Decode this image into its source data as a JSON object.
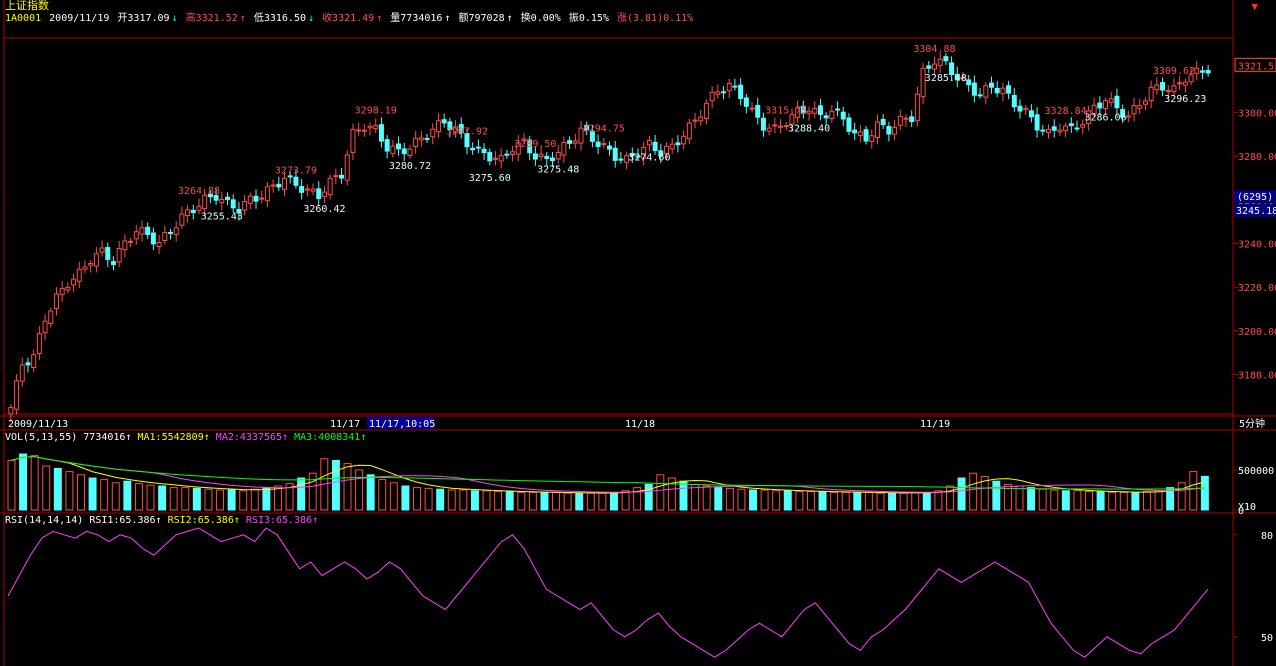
{
  "header": {
    "title": "上证指数",
    "code": "1A0001",
    "date": "2009/11/19",
    "open": "开3317.09",
    "high": "高3321.52",
    "low": "低3316.50",
    "close": "收3321.49",
    "volume": "量7734016",
    "amount": "额797028",
    "turnover": "换0.00%",
    "amplitude": "振0.15%",
    "change": "涨(3.81)0.11%"
  },
  "close_icon": "close-icon",
  "time_axis": {
    "labels": [
      "2009/11/13",
      "11/17",
      "11/17,10:05",
      "11/18",
      "11/19"
    ],
    "period": "5分钟"
  },
  "price_axis": {
    "ticks": [
      "3300.00",
      "3280.00",
      "3260.00",
      "3240.00",
      "3220.00",
      "3200.00",
      "3180.00"
    ],
    "current_price": "3321.5",
    "cursor_price": "3245.18",
    "cursor_count": "(6295)"
  },
  "annotations": [
    {
      "text": "3264.88",
      "type": "high"
    },
    {
      "text": "3255.43",
      "type": "low"
    },
    {
      "text": "3273.79",
      "type": "high"
    },
    {
      "text": "3260.42",
      "type": "low"
    },
    {
      "text": "3298.19",
      "type": "high"
    },
    {
      "text": "3280.72",
      "type": "low"
    },
    {
      "text": "3297.92",
      "type": "high"
    },
    {
      "text": "3275.60",
      "type": "low"
    },
    {
      "text": "3289.50",
      "type": "high"
    },
    {
      "text": "3275.48",
      "type": "low"
    },
    {
      "text": "3294.75",
      "type": "high"
    },
    {
      "text": "3274.60",
      "type": "low"
    },
    {
      "text": "3315.75",
      "type": "high"
    },
    {
      "text": "3288.40",
      "type": "low"
    },
    {
      "text": "3304.88",
      "type": "high"
    },
    {
      "text": "3285.48",
      "type": "low"
    },
    {
      "text": "3328.84",
      "type": "high"
    },
    {
      "text": "3286.06",
      "type": "low"
    },
    {
      "text": "3309.62",
      "type": "high"
    },
    {
      "text": "3296.23",
      "type": "low"
    }
  ],
  "volume_panel": {
    "label": "VOL(5,13,55)",
    "vol": "7734016",
    "ma1": "MA1:5542809",
    "ma2": "MA2:4337565",
    "ma3": "MA3:4008341",
    "ticks": [
      "500000",
      "0"
    ],
    "scale": "X10"
  },
  "rsi_panel": {
    "label": "RSI(14,14,14)",
    "rsi1": "RSI1:65.386",
    "rsi2": "RSI2:65.386",
    "rsi3": "RSI3:65.386",
    "ticks": [
      "80",
      "50"
    ]
  },
  "chart_data": {
    "type": "candlestick",
    "price_range": [
      3162,
      3334
    ],
    "anchors": [
      [
        0,
        3165
      ],
      [
        2,
        3185
      ],
      [
        4,
        3188
      ],
      [
        6,
        3206
      ],
      [
        8,
        3215
      ],
      [
        10,
        3222
      ],
      [
        12,
        3226
      ],
      [
        14,
        3233
      ],
      [
        16,
        3236
      ],
      [
        18,
        3232
      ],
      [
        20,
        3240
      ],
      [
        22,
        3246
      ],
      [
        24,
        3244
      ],
      [
        26,
        3240
      ],
      [
        28,
        3246
      ],
      [
        30,
        3252
      ],
      [
        32,
        3256
      ],
      [
        34,
        3260
      ],
      [
        36,
        3262
      ],
      [
        38,
        3258
      ],
      [
        40,
        3256
      ],
      [
        42,
        3260
      ],
      [
        44,
        3262
      ],
      [
        46,
        3266
      ],
      [
        48,
        3270
      ],
      [
        50,
        3267
      ],
      [
        52,
        3264
      ],
      [
        54,
        3262
      ],
      [
        56,
        3268
      ],
      [
        58,
        3272
      ],
      [
        60,
        3290
      ],
      [
        62,
        3294
      ],
      [
        64,
        3292
      ],
      [
        66,
        3284
      ],
      [
        68,
        3282
      ],
      [
        70,
        3284
      ],
      [
        72,
        3288
      ],
      [
        74,
        3292
      ],
      [
        76,
        3296
      ],
      [
        78,
        3292
      ],
      [
        80,
        3286
      ],
      [
        82,
        3282
      ],
      [
        84,
        3280
      ],
      [
        86,
        3278
      ],
      [
        88,
        3284
      ],
      [
        90,
        3286
      ],
      [
        92,
        3280
      ],
      [
        94,
        3278
      ],
      [
        96,
        3282
      ],
      [
        98,
        3286
      ],
      [
        100,
        3292
      ],
      [
        102,
        3288
      ],
      [
        104,
        3284
      ],
      [
        106,
        3280
      ],
      [
        108,
        3278
      ],
      [
        110,
        3282
      ],
      [
        112,
        3285
      ],
      [
        114,
        3282
      ],
      [
        116,
        3284
      ],
      [
        118,
        3290
      ],
      [
        120,
        3296
      ],
      [
        122,
        3304
      ],
      [
        124,
        3310
      ],
      [
        126,
        3312
      ],
      [
        128,
        3308
      ],
      [
        130,
        3300
      ],
      [
        132,
        3294
      ],
      [
        134,
        3292
      ],
      [
        136,
        3296
      ],
      [
        138,
        3300
      ],
      [
        140,
        3302
      ],
      [
        142,
        3298
      ],
      [
        144,
        3301
      ],
      [
        146,
        3297
      ],
      [
        148,
        3290
      ],
      [
        150,
        3288
      ],
      [
        152,
        3294
      ],
      [
        154,
        3292
      ],
      [
        156,
        3296
      ],
      [
        158,
        3298
      ],
      [
        160,
        3318
      ],
      [
        162,
        3324
      ],
      [
        164,
        3322
      ],
      [
        166,
        3316
      ],
      [
        168,
        3312
      ],
      [
        170,
        3308
      ],
      [
        172,
        3312
      ],
      [
        174,
        3310
      ],
      [
        176,
        3304
      ],
      [
        178,
        3300
      ],
      [
        180,
        3294
      ],
      [
        182,
        3290
      ],
      [
        184,
        3294
      ],
      [
        186,
        3292
      ],
      [
        188,
        3296
      ],
      [
        190,
        3302
      ],
      [
        192,
        3306
      ],
      [
        194,
        3302
      ],
      [
        196,
        3298
      ],
      [
        198,
        3304
      ],
      [
        200,
        3310
      ],
      [
        202,
        3312
      ],
      [
        204,
        3310
      ],
      [
        206,
        3316
      ],
      [
        208,
        3318
      ],
      [
        210,
        3320
      ]
    ],
    "volume_values": [
      62,
      70,
      68,
      55,
      52,
      48,
      44,
      40,
      38,
      34,
      36,
      33,
      31,
      30,
      28,
      28,
      27,
      26,
      25,
      25,
      24,
      26,
      28,
      30,
      33,
      40,
      46,
      64,
      62,
      58,
      50,
      44,
      38,
      34,
      30,
      28,
      27,
      26,
      25,
      25,
      24,
      24,
      23,
      23,
      22,
      22,
      22,
      22,
      21,
      21,
      21,
      21,
      22,
      24,
      28,
      32,
      44,
      40,
      36,
      32,
      30,
      28,
      27,
      26,
      25,
      25,
      24,
      24,
      23,
      23,
      23,
      22,
      22,
      22,
      22,
      21,
      21,
      21,
      22,
      22,
      24,
      30,
      40,
      46,
      42,
      36,
      32,
      30,
      28,
      26,
      25,
      24,
      24,
      23,
      23,
      22,
      22,
      22,
      23,
      24,
      28,
      34,
      48,
      42
    ],
    "volume_range": [
      0,
      800000
    ],
    "rsi_range": [
      42,
      82
    ],
    "rsi_values": [
      62,
      68,
      74,
      79,
      81,
      80,
      79,
      81,
      80,
      78,
      80,
      79,
      76,
      74,
      77,
      80,
      81,
      82,
      80,
      78,
      79,
      80,
      78,
      82,
      80,
      75,
      70,
      72,
      68,
      70,
      72,
      70,
      67,
      69,
      72,
      70,
      66,
      62,
      60,
      58,
      62,
      66,
      70,
      74,
      78,
      80,
      76,
      70,
      64,
      62,
      60,
      58,
      60,
      56,
      52,
      50,
      52,
      55,
      57,
      53,
      50,
      48,
      46,
      44,
      46,
      49,
      52,
      54,
      52,
      50,
      54,
      58,
      60,
      56,
      52,
      48,
      46,
      50,
      52,
      55,
      58,
      62,
      66,
      70,
      68,
      66,
      68,
      70,
      72,
      70,
      68,
      66,
      60,
      54,
      50,
      46,
      44,
      47,
      50,
      48,
      46,
      45,
      48,
      50,
      52,
      56,
      60,
      64
    ]
  }
}
